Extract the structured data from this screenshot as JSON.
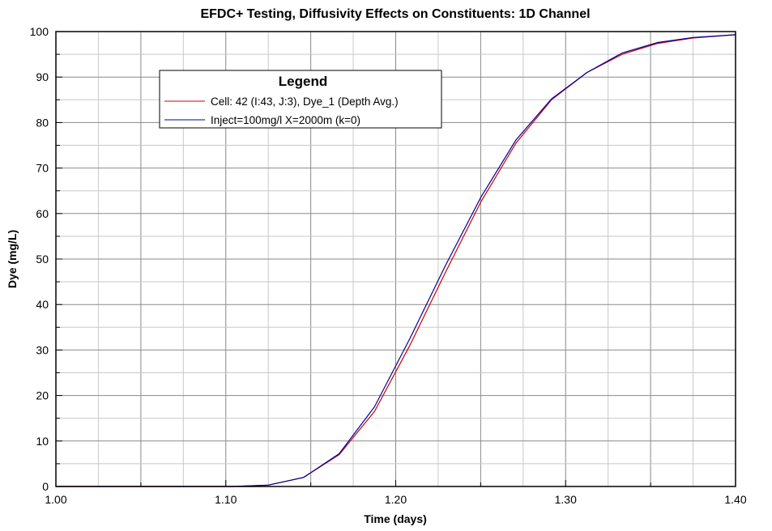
{
  "chart_data": {
    "type": "line",
    "title": "EFDC+ Testing, Diffusivity Effects on Constituents: 1D Channel",
    "xlabel": "Time (days)",
    "ylabel": "Dye (mg/L)",
    "xlim": [
      1.0,
      1.4
    ],
    "ylim": [
      0,
      100
    ],
    "xticks": [
      "1.00",
      "1.10",
      "1.20",
      "1.30",
      "1.40"
    ],
    "yticks": [
      "0",
      "10",
      "20",
      "30",
      "40",
      "50",
      "60",
      "70",
      "80",
      "90",
      "100"
    ],
    "grid": true,
    "legend": {
      "title": "Legend",
      "placement": "top-left"
    },
    "series": [
      {
        "name": "Cell: 42 (I:43, J:3), Dye_1 (Depth Avg.)",
        "color": "#cc0000",
        "x": [
          1.0,
          1.104,
          1.125,
          1.1458,
          1.1667,
          1.1875,
          1.2083,
          1.2292,
          1.25,
          1.2708,
          1.2917,
          1.3125,
          1.3333,
          1.3542,
          1.375,
          1.3958,
          1.4
        ],
        "y": [
          0,
          0,
          0.3,
          2,
          7,
          16.5,
          31,
          47,
          62.5,
          75.5,
          85,
          91,
          95,
          97.4,
          98.6,
          99.2,
          99.3
        ]
      },
      {
        "name": "Inject=100mg/l X=2000m (k=0)",
        "color": "#000099",
        "x": [
          1.0,
          1.104,
          1.125,
          1.1458,
          1.1667,
          1.1875,
          1.2083,
          1.2292,
          1.25,
          1.2708,
          1.2917,
          1.3125,
          1.3333,
          1.3542,
          1.375,
          1.3958,
          1.4
        ],
        "y": [
          0,
          0,
          0.3,
          2,
          7.2,
          17.5,
          32.5,
          48.5,
          63.5,
          76.2,
          85.2,
          91,
          95.3,
          97.6,
          98.7,
          99.2,
          99.3
        ]
      }
    ]
  }
}
